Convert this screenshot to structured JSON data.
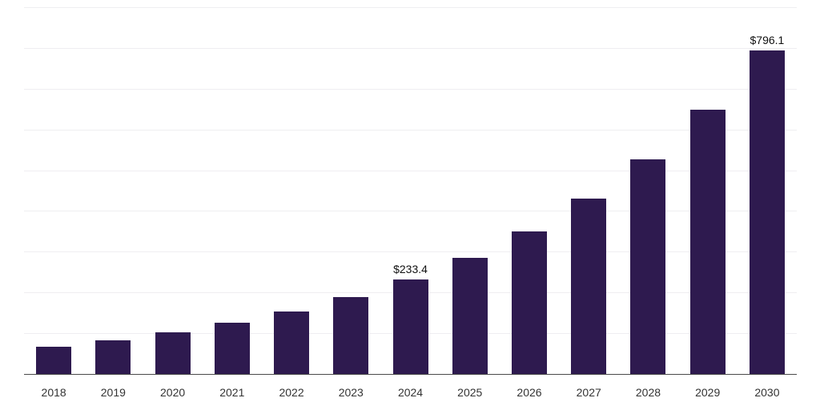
{
  "chart_data": {
    "type": "bar",
    "title": "",
    "xlabel": "",
    "ylabel": "",
    "categories": [
      "2018",
      "2019",
      "2020",
      "2021",
      "2022",
      "2023",
      "2024",
      "2025",
      "2026",
      "2027",
      "2028",
      "2029",
      "2030"
    ],
    "values": [
      68.6,
      84.2,
      103.4,
      126.9,
      155.7,
      190.2,
      233.4,
      286.4,
      351.5,
      431.4,
      529.4,
      649.6,
      796.1
    ],
    "data_labels": [
      "",
      "",
      "",
      "",
      "",
      "",
      "$233.4",
      "",
      "",
      "",
      "",
      "",
      "$796.1"
    ],
    "ylim": [
      0,
      900
    ],
    "gridline_interval": 100,
    "grid": true,
    "legend": false,
    "value_prefix": "$"
  },
  "colors": {
    "background": "#ffffff",
    "bar": "#2E1A4F",
    "gridline": "#efeef1",
    "axis_line": "#4a4a4a",
    "tick_label": "#333333",
    "data_label": "#111111"
  }
}
